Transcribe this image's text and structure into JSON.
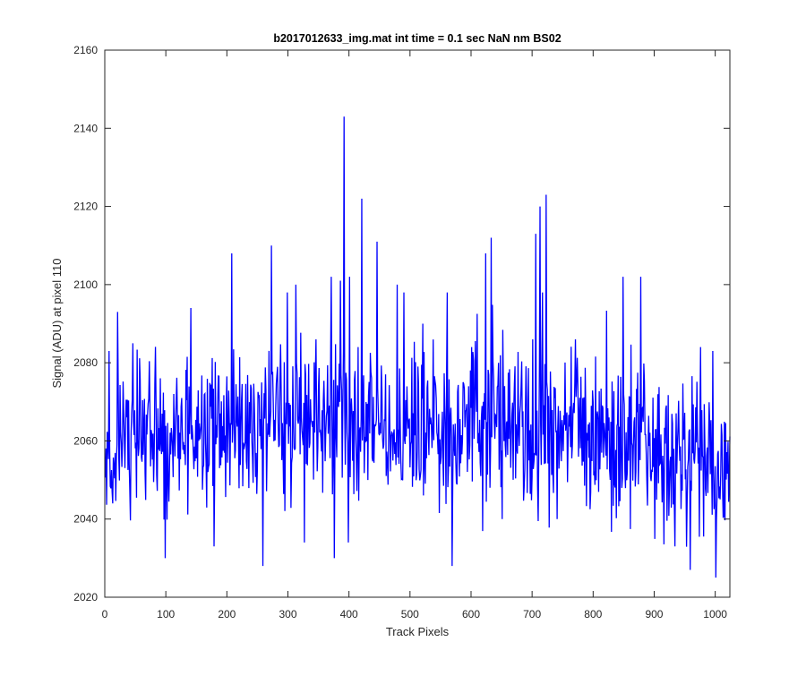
{
  "chart_data": {
    "type": "line",
    "title": "b2017012633_img.mat int time = 0.1 sec  NaN nm BS02",
    "xlabel": "Track Pixels",
    "ylabel": "Signal (ADU) at pixel 110",
    "xlim": [
      0,
      1024
    ],
    "ylim": [
      2020,
      2160
    ],
    "xticks": [
      0,
      100,
      200,
      300,
      400,
      500,
      600,
      700,
      800,
      900,
      1000
    ],
    "yticks": [
      2020,
      2040,
      2060,
      2080,
      2100,
      2120,
      2140,
      2160
    ],
    "xtick_labels": [
      "0",
      "100",
      "200",
      "300",
      "400",
      "500",
      "600",
      "700",
      "800",
      "900",
      "1000"
    ],
    "ytick_labels": [
      "2020",
      "2040",
      "2060",
      "2080",
      "2100",
      "2120",
      "2140",
      "2160"
    ],
    "grid": false,
    "line_color": "#0000ff",
    "series": [
      {
        "n_points": 1024,
        "base_level": 2062,
        "noise_amplitude": 10,
        "drift": [
          [
            0,
            2061
          ],
          [
            200,
            2062
          ],
          [
            380,
            2066
          ],
          [
            450,
            2064
          ],
          [
            700,
            2064
          ],
          [
            850,
            2060
          ],
          [
            960,
            2055
          ],
          [
            1024,
            2052
          ]
        ],
        "spikes": [
          [
            6,
            2083
          ],
          [
            12,
            2044
          ],
          [
            20,
            2093
          ],
          [
            45,
            2085
          ],
          [
            98,
            2030
          ],
          [
            140,
            2094
          ],
          [
            178,
            2033
          ],
          [
            207,
            2108
          ],
          [
            258,
            2028
          ],
          [
            272,
            2110
          ],
          [
            298,
            2098
          ],
          [
            312,
            2100
          ],
          [
            326,
            2034
          ],
          [
            345,
            2086
          ],
          [
            370,
            2102
          ],
          [
            375,
            2030
          ],
          [
            385,
            2101
          ],
          [
            391,
            2143
          ],
          [
            398,
            2034
          ],
          [
            400,
            2102
          ],
          [
            414,
            2084
          ],
          [
            420,
            2122
          ],
          [
            430,
            2050
          ],
          [
            445,
            2111
          ],
          [
            478,
            2100
          ],
          [
            520,
            2090
          ],
          [
            560,
            2098
          ],
          [
            568,
            2028
          ],
          [
            600,
            2084
          ],
          [
            623,
            2108
          ],
          [
            632,
            2112
          ],
          [
            650,
            2040
          ],
          [
            700,
            2086
          ],
          [
            705,
            2113
          ],
          [
            712,
            2120
          ],
          [
            716,
            2098
          ],
          [
            722,
            2123
          ],
          [
            740,
            2040
          ],
          [
            770,
            2086
          ],
          [
            848,
            2102
          ],
          [
            877,
            2102
          ],
          [
            958,
            2027
          ],
          [
            975,
            2084
          ],
          [
            995,
            2083
          ],
          [
            1000,
            2025
          ]
        ],
        "seed": 26331
      }
    ]
  }
}
